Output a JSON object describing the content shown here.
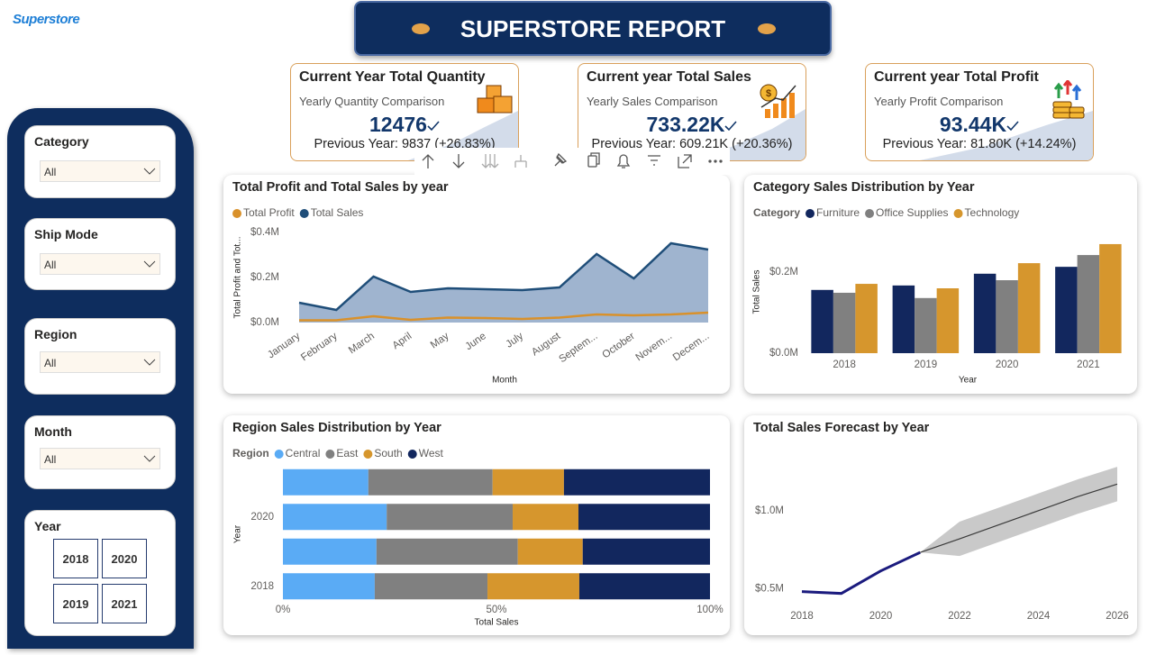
{
  "logo": "Superstore",
  "title": "SUPERSTORE REPORT",
  "kpis": [
    {
      "title": "Current Year Total Quantity",
      "subtitle": "Yearly Quantity Comparison",
      "value": "12476",
      "comparison": "Previous Year: 9837 (+26.83%)"
    },
    {
      "title": "Current year Total Sales",
      "subtitle": "Yearly Sales Comparison",
      "value": "733.22K",
      "comparison": "Previous Year: 609.21K (+20.36%)"
    },
    {
      "title": "Current year Total Profit",
      "subtitle": "Yearly Profit Comparison",
      "value": "93.44K",
      "comparison": "Previous Year: 81.80K (+14.24%)"
    }
  ],
  "filters": [
    {
      "label": "Category",
      "value": "All"
    },
    {
      "label": "Ship Mode",
      "value": "All"
    },
    {
      "label": "Region",
      "value": "All"
    },
    {
      "label": "Month",
      "value": "All"
    },
    {
      "label": "Year",
      "options": [
        "2018",
        "2020",
        "2019",
        "2021"
      ]
    }
  ],
  "chart_data": [
    {
      "type": "area",
      "title": "Total Profit and Total Sales by year",
      "x_label": "Month",
      "y_label": "Total Profit and Tot...",
      "categories": [
        "January",
        "February",
        "March",
        "April",
        "May",
        "June",
        "July",
        "August",
        "Septem...",
        "October",
        "Novem...",
        "Decem..."
      ],
      "series": [
        {
          "name": "Total Profit",
          "color": "#d9912b",
          "values": [
            10000,
            10000,
            28000,
            12000,
            22000,
            20000,
            16000,
            22000,
            36000,
            32000,
            36000,
            44000
          ]
        },
        {
          "name": "Total Sales",
          "color": "#1f4e79",
          "fill_color": "#9fb4cf",
          "values": [
            88000,
            56000,
            204000,
            136000,
            152000,
            148000,
            144000,
            156000,
            304000,
            196000,
            352000,
            324000
          ]
        }
      ],
      "ylim": [
        0,
        400000
      ],
      "yticks": [
        {
          "value": 0,
          "label": "$0.0M"
        },
        {
          "value": 200000,
          "label": "$0.2M"
        },
        {
          "value": 400000,
          "label": "$0.4M"
        }
      ]
    },
    {
      "type": "bar",
      "title": "Category Sales Distribution by Year",
      "legend_title": "Category",
      "x_label": "Year",
      "y_label": "Total Sales",
      "categories": [
        "2018",
        "2019",
        "2020",
        "2021"
      ],
      "series": [
        {
          "name": "Furniture",
          "color": "#12275e",
          "values": [
            156000,
            167000,
            196000,
            213000
          ]
        },
        {
          "name": "Office Supplies",
          "color": "#808080",
          "values": [
            149000,
            136000,
            180000,
            242000
          ]
        },
        {
          "name": "Technology",
          "color": "#d6962d",
          "values": [
            171000,
            160000,
            222000,
            269000
          ]
        }
      ],
      "ylim": [
        0,
        300000
      ],
      "yticks": [
        {
          "value": 0,
          "label": "$0.0M"
        },
        {
          "value": 200000,
          "label": "$0.2M"
        }
      ]
    },
    {
      "type": "stackedbar",
      "title": "Region Sales Distribution by Year",
      "legend_title": "Region",
      "x_label": "Total Sales",
      "y_label": "Year",
      "categories": [
        null,
        "2020",
        null,
        "2018"
      ],
      "series": [
        {
          "name": "Central",
          "color": "#5aabf5",
          "values": [
            20.0,
            24.3,
            21.9,
            21.5
          ]
        },
        {
          "name": "East",
          "color": "#808080",
          "values": [
            29.1,
            29.5,
            33.1,
            26.4
          ]
        },
        {
          "name": "South",
          "color": "#d6962d",
          "values": [
            16.7,
            15.4,
            15.2,
            21.5
          ]
        },
        {
          "name": "West",
          "color": "#12275e",
          "values": [
            34.2,
            30.8,
            29.8,
            30.6
          ]
        }
      ],
      "xlim": [
        0,
        100
      ],
      "xticks": [
        {
          "value": 0,
          "label": "0%"
        },
        {
          "value": 50,
          "label": "50%"
        },
        {
          "value": 100,
          "label": "100%"
        }
      ]
    },
    {
      "type": "line",
      "title": "Total Sales Forecast by Year",
      "x": [
        2018,
        2019,
        2020,
        2021,
        2022,
        2023,
        2024,
        2025,
        2026
      ],
      "series": [
        {
          "color": "#1b1b7e",
          "values": [
            483000,
            471000,
            615000,
            733000,
            null,
            null,
            null,
            null,
            null
          ]
        },
        {
          "color": "#3a3a3a",
          "band_color": "#c9c9c9",
          "values": [
            null,
            null,
            null,
            733000,
            820000,
            910000,
            1000000,
            1090000,
            1170000
          ],
          "lower": [
            null,
            null,
            null,
            733000,
            710000,
            800000,
            890000,
            980000,
            1060000
          ],
          "upper": [
            null,
            null,
            null,
            733000,
            930000,
            1020000,
            1110000,
            1200000,
            1280000
          ]
        }
      ],
      "xlim": [
        2018,
        2026
      ],
      "xticks": [
        2018,
        2020,
        2022,
        2024,
        2026
      ],
      "ylim": [
        400000,
        1350000
      ],
      "yticks": [
        {
          "value": 500000,
          "label": "$0.5M"
        },
        {
          "value": 1000000,
          "label": "$1.0M"
        }
      ]
    }
  ]
}
